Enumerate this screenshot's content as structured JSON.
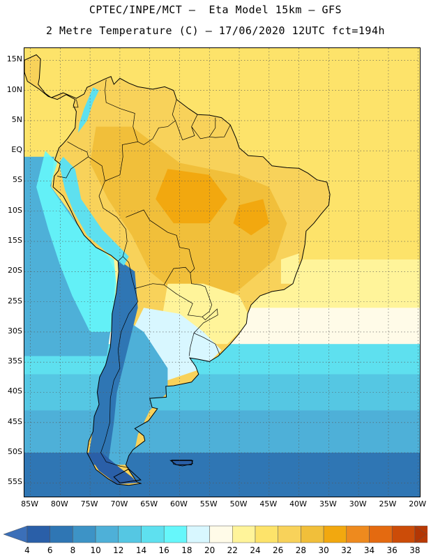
{
  "header": {
    "line1": "CPTEC/INPE/MCT —  Eta Model 15km — GFS",
    "line2": "2 Metre Temperature (C) — 17/06/2020 12UTC fct=194h"
  },
  "map": {
    "lat_labels": [
      {
        "lat": 15,
        "label": "15N"
      },
      {
        "lat": 10,
        "label": "10N"
      },
      {
        "lat": 5,
        "label": "5N"
      },
      {
        "lat": 0,
        "label": "EQ"
      },
      {
        "lat": -5,
        "label": "5S"
      },
      {
        "lat": -10,
        "label": "10S"
      },
      {
        "lat": -15,
        "label": "15S"
      },
      {
        "lat": -20,
        "label": "20S"
      },
      {
        "lat": -25,
        "label": "25S"
      },
      {
        "lat": -30,
        "label": "30S"
      },
      {
        "lat": -35,
        "label": "35S"
      },
      {
        "lat": -40,
        "label": "40S"
      },
      {
        "lat": -45,
        "label": "45S"
      },
      {
        "lat": -50,
        "label": "50S"
      },
      {
        "lat": -55,
        "label": "55S"
      }
    ],
    "lon_labels": [
      {
        "lon": -85,
        "label": "85W"
      },
      {
        "lon": -80,
        "label": "80W"
      },
      {
        "lon": -75,
        "label": "75W"
      },
      {
        "lon": -70,
        "label": "70W"
      },
      {
        "lon": -65,
        "label": "65W"
      },
      {
        "lon": -60,
        "label": "60W"
      },
      {
        "lon": -55,
        "label": "55W"
      },
      {
        "lon": -50,
        "label": "50W"
      },
      {
        "lon": -45,
        "label": "45W"
      },
      {
        "lon": -40,
        "label": "40W"
      },
      {
        "lon": -35,
        "label": "35W"
      },
      {
        "lon": -30,
        "label": "30W"
      },
      {
        "lon": -25,
        "label": "25W"
      },
      {
        "lon": -20,
        "label": "20W"
      }
    ],
    "lon_range": [
      -86,
      -19.5
    ],
    "lat_range": [
      -57.5,
      17
    ],
    "grid": true
  },
  "colorbar": {
    "levels": [
      4,
      6,
      8,
      10,
      12,
      14,
      16,
      18,
      20,
      22,
      24,
      26,
      28,
      30,
      32,
      34,
      36,
      38
    ],
    "colors": [
      "#2a5fa8",
      "#2f76b4",
      "#3d93c6",
      "#4eb0d8",
      "#55c7e3",
      "#5ee0ef",
      "#66f7fb",
      "#d8f7ff",
      "#fffbe8",
      "#fff49a",
      "#fde36a",
      "#f8d25a",
      "#f1bf3a",
      "#f2a80f",
      "#ee8a1e",
      "#e46a10",
      "#cc4c08",
      "#b83a04"
    ],
    "under_color": "#3b6fb8",
    "over_color": "#b33604"
  },
  "field_zones": {
    "ocean_bands": [
      {
        "lat_from": 17,
        "lat_to": -18,
        "color": "#fde36a"
      },
      {
        "lat_from": -18,
        "lat_to": -26,
        "color": "#fff49a"
      },
      {
        "lat_from": -26,
        "lat_to": -32,
        "color": "#fffbe8"
      },
      {
        "lat_from": -32,
        "lat_to": -37,
        "color": "#5ee0ef"
      },
      {
        "lat_from": -37,
        "lat_to": -43,
        "color": "#55c7e3"
      },
      {
        "lat_from": -43,
        "lat_to": -50,
        "color": "#4eb0d8"
      },
      {
        "lat_from": -50,
        "lat_to": -57.5,
        "color": "#2f76b4"
      }
    ]
  }
}
